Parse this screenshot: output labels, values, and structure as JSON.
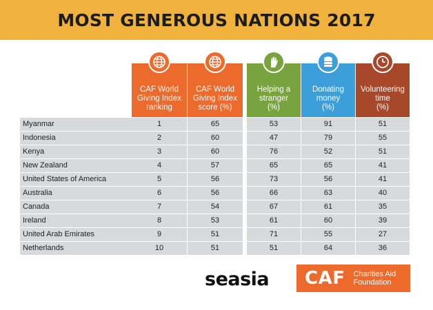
{
  "title": "MOST GENEROUS NATIONS 2017",
  "colors": {
    "banner": "#f0b13d",
    "caf": "#ec6a2c",
    "helping": "#79a33f",
    "donating": "#3c9fd9",
    "volunteering": "#a8482a",
    "row_bg": "#d8d9da"
  },
  "chart_data": {
    "type": "table",
    "columns": [
      {
        "key": "rank",
        "label": "CAF World\nGiving Index\nranking",
        "icon": "globe-icon"
      },
      {
        "key": "score",
        "label": "CAF World\nGiving Index\nscore (%)",
        "icon": "globe-icon"
      },
      {
        "key": "helping",
        "label": "Helping a\nstranger\n(%)",
        "icon": "helping-hand-icon"
      },
      {
        "key": "donating",
        "label": "Donating\nmoney\n(%)",
        "icon": "coins-icon"
      },
      {
        "key": "volunteering",
        "label": "Volunteering\ntime\n(%)",
        "icon": "clock-icon"
      }
    ],
    "rows": [
      {
        "country": "Myanmar",
        "rank": "1",
        "score": "65",
        "helping": "53",
        "donating": "91",
        "volunteering": "51"
      },
      {
        "country": "Indonesia",
        "rank": "2",
        "score": "60",
        "helping": "47",
        "donating": "79",
        "volunteering": "55"
      },
      {
        "country": "Kenya",
        "rank": "3",
        "score": "60",
        "helping": "76",
        "donating": "52",
        "volunteering": "51"
      },
      {
        "country": "New Zealand",
        "rank": "4",
        "score": "57",
        "helping": "65",
        "donating": "65",
        "volunteering": "41"
      },
      {
        "country": "United States of America",
        "rank": "5",
        "score": "56",
        "helping": "73",
        "donating": "56",
        "volunteering": "41"
      },
      {
        "country": "Australia",
        "rank": "6",
        "score": "56",
        "helping": "66",
        "donating": "63",
        "volunteering": "40"
      },
      {
        "country": "Canada",
        "rank": "7",
        "score": "54",
        "helping": "67",
        "donating": "61",
        "volunteering": "35"
      },
      {
        "country": "Ireland",
        "rank": "8",
        "score": "53",
        "helping": "61",
        "donating": "60",
        "volunteering": "39"
      },
      {
        "country": "United Arab Emirates",
        "rank": "9",
        "score": "51",
        "helping": "71",
        "donating": "55",
        "volunteering": "27"
      },
      {
        "country": "Netherlands",
        "rank": "10",
        "score": "51",
        "helping": "51",
        "donating": "64",
        "volunteering": "36"
      }
    ]
  },
  "logos": {
    "seasia": "seasia",
    "caf_mark": "CAF",
    "caf_name": "Charities Aid\nFoundation"
  }
}
